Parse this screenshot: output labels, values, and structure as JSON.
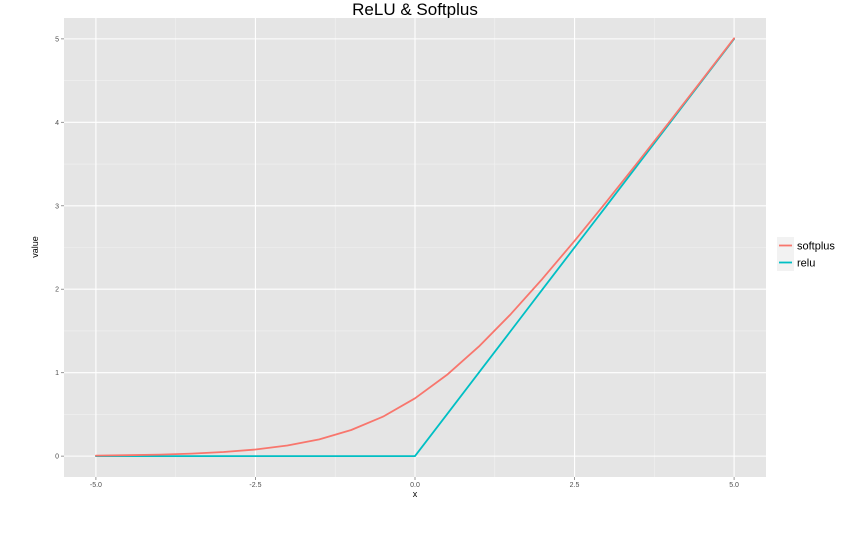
{
  "chart_data": {
    "type": "line",
    "title": "ReLU & Softplus",
    "xlabel": "x",
    "ylabel": "value",
    "xlim": [
      -5,
      5
    ],
    "ylim": [
      0,
      5
    ],
    "x_ticks": [
      -5.0,
      -2.5,
      0.0,
      2.5,
      5.0
    ],
    "x_tick_labels": [
      "-5.0",
      "-2.5",
      "0.0",
      "2.5",
      "5.0"
    ],
    "y_ticks": [
      0,
      1,
      2,
      3,
      4,
      5
    ],
    "y_tick_labels": [
      "0",
      "1",
      "2",
      "3",
      "4",
      "5"
    ],
    "grid": true,
    "legend_position": "right",
    "background_color": "#e5e5e5",
    "grid_color": "#ffffff",
    "x": [
      -5.0,
      -4.5,
      -4.0,
      -3.5,
      -3.0,
      -2.5,
      -2.0,
      -1.5,
      -1.0,
      -0.5,
      0.0,
      0.5,
      1.0,
      1.5,
      2.0,
      2.5,
      3.0,
      3.5,
      4.0,
      4.5,
      5.0
    ],
    "series": [
      {
        "name": "softplus",
        "color": "#f8766d",
        "values": [
          0.007,
          0.011,
          0.018,
          0.03,
          0.049,
          0.079,
          0.127,
          0.201,
          0.313,
          0.474,
          0.693,
          0.974,
          1.313,
          1.701,
          2.127,
          2.579,
          3.049,
          3.53,
          4.018,
          4.511,
          5.007
        ]
      },
      {
        "name": "relu",
        "color": "#00bfc4",
        "values": [
          0,
          0,
          0,
          0,
          0,
          0,
          0,
          0,
          0,
          0,
          0,
          0.5,
          1.0,
          1.5,
          2.0,
          2.5,
          3.0,
          3.5,
          4.0,
          4.5,
          5.0
        ]
      }
    ]
  }
}
